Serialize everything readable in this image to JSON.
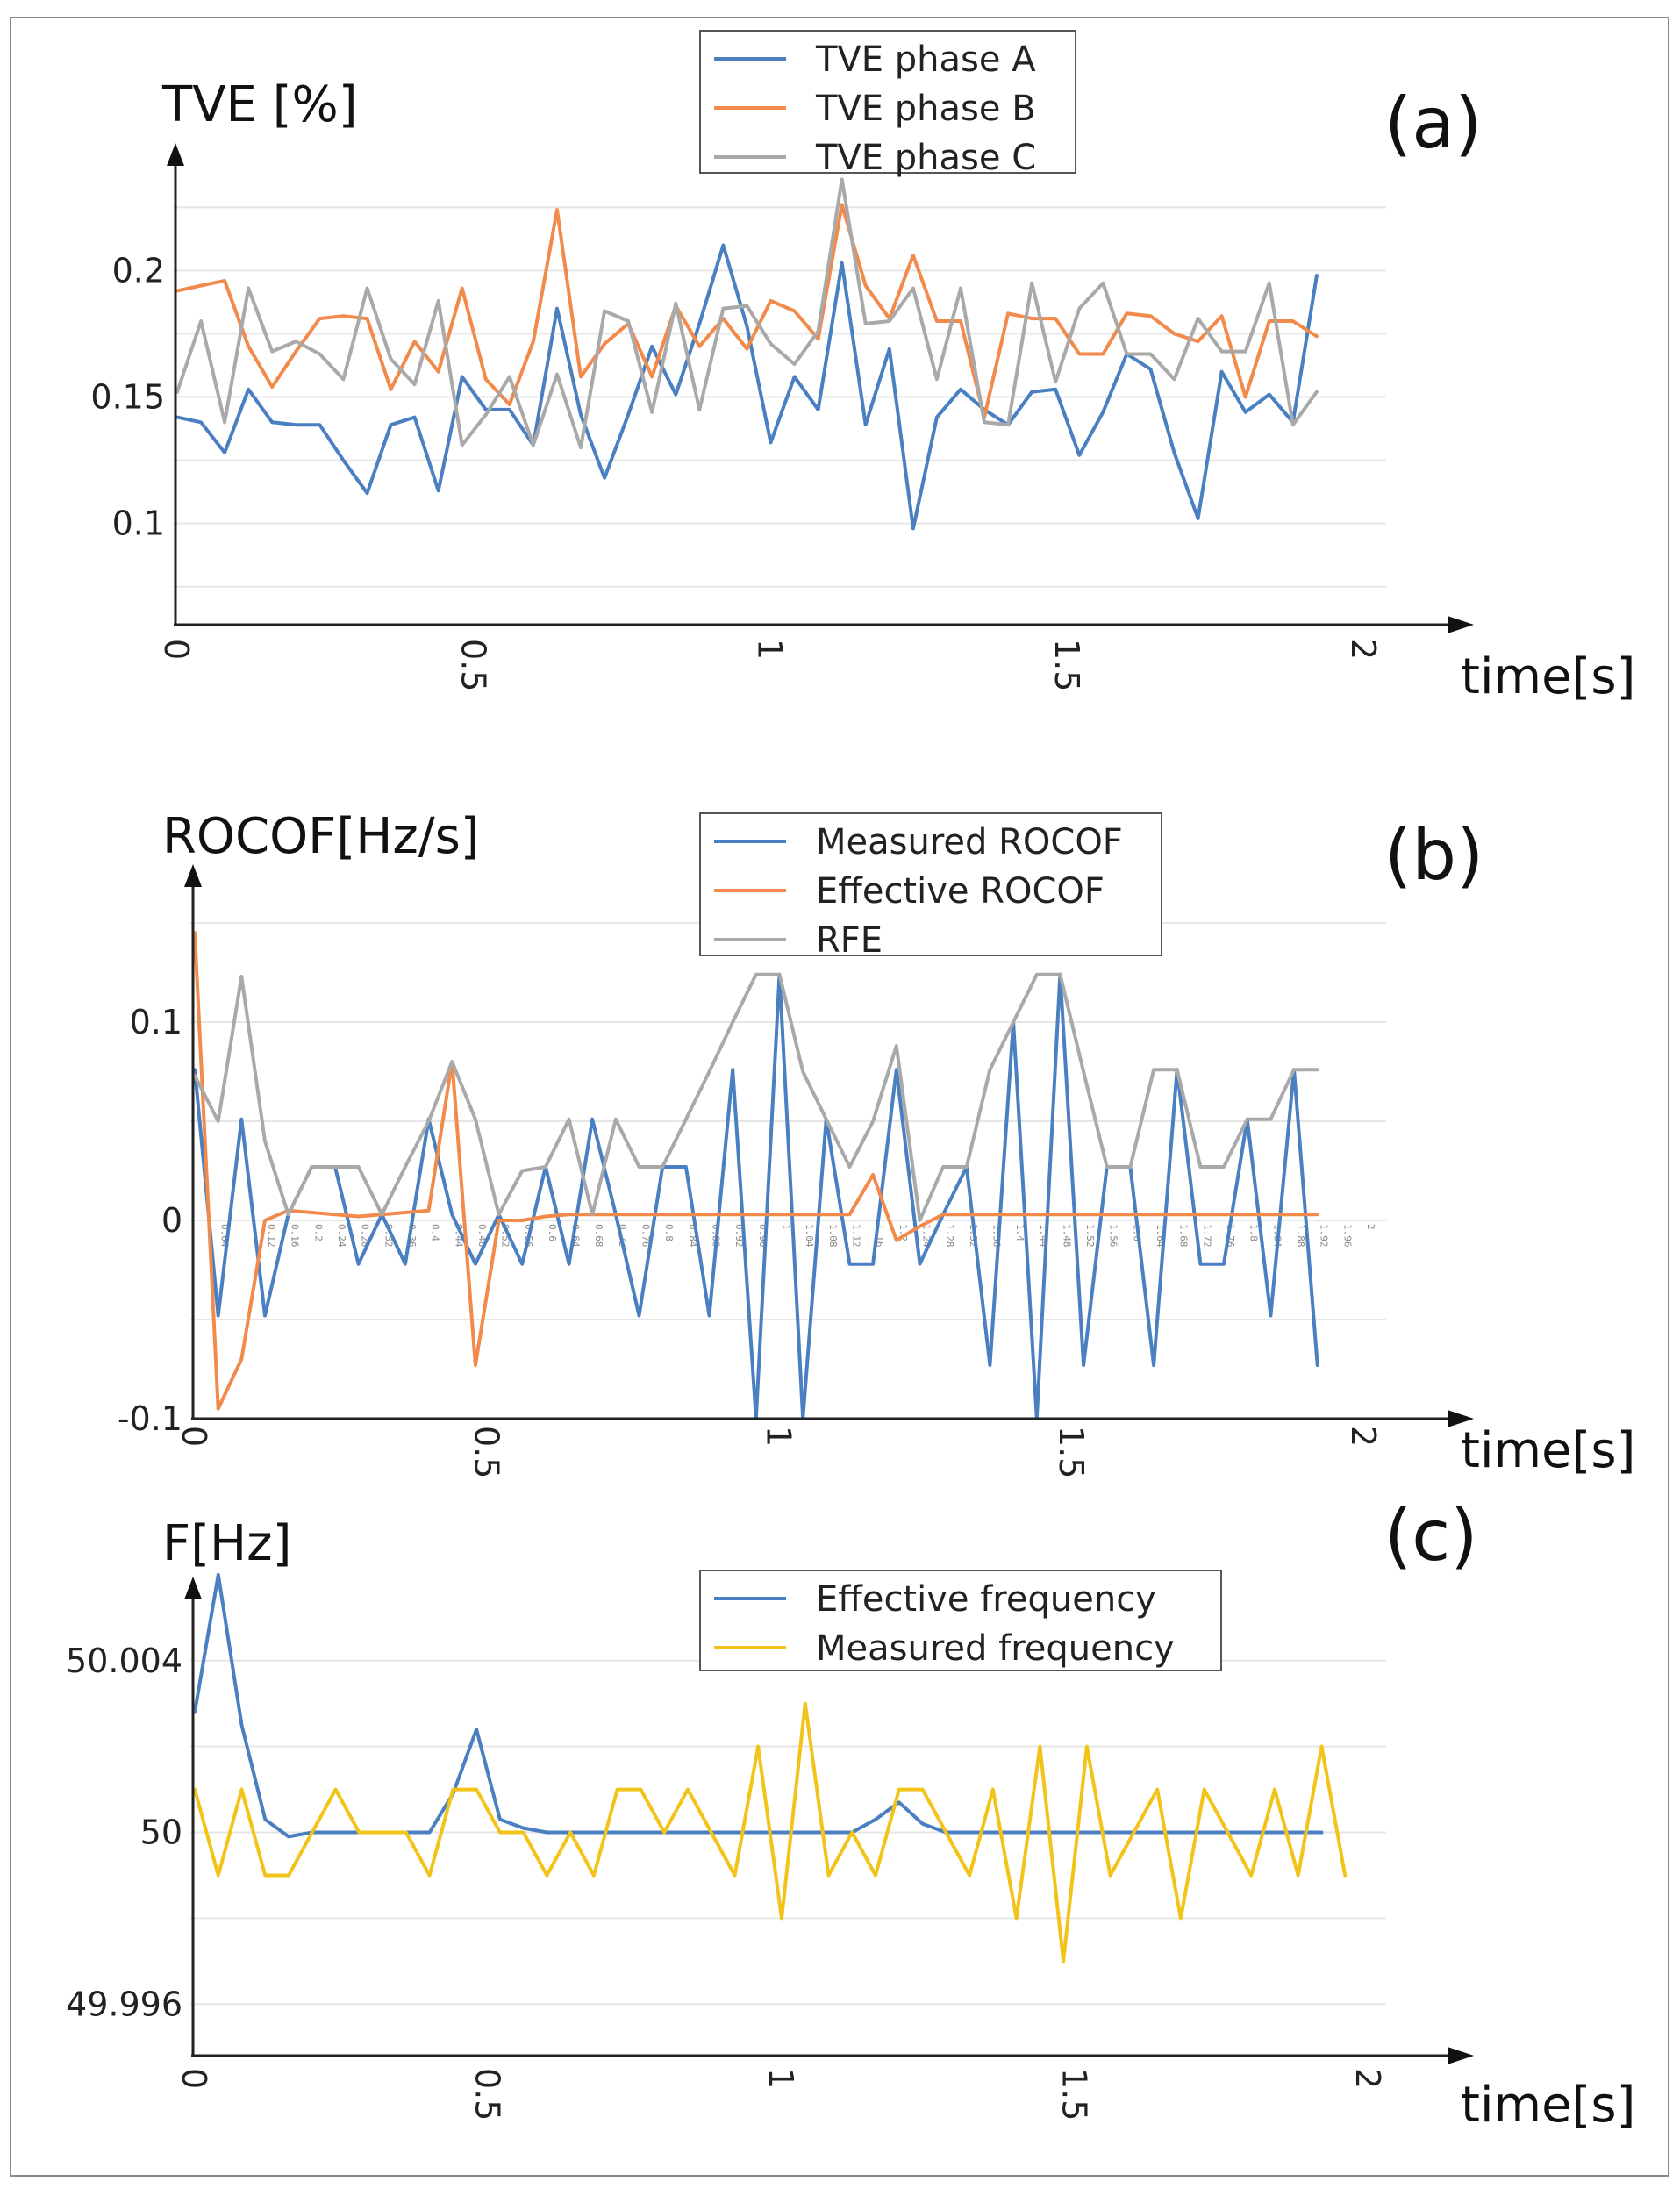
{
  "chart_data": [
    {
      "id": "a",
      "type": "line",
      "panel_label": "(a)",
      "ylabel": "TVE [%]",
      "xlabel": "time[s]",
      "xlim": [
        0,
        2
      ],
      "ylim": [
        0.06,
        0.24
      ],
      "xticks": [
        "0",
        "0.5",
        "1",
        "1.5",
        "2"
      ],
      "yticks": [
        "0.1",
        "0.15",
        "0.2"
      ],
      "legend_position": "top-center",
      "series": [
        {
          "name": "TVE phase A",
          "color": "#4a7fc1",
          "x_step": 0.04,
          "values": [
            0.142,
            0.14,
            0.128,
            0.153,
            0.14,
            0.139,
            0.139,
            0.125,
            0.112,
            0.139,
            0.142,
            0.113,
            0.158,
            0.145,
            0.145,
            0.131,
            0.185,
            0.143,
            0.118,
            0.143,
            0.17,
            0.151,
            0.179,
            0.21,
            0.178,
            0.132,
            0.158,
            0.145,
            0.203,
            0.139,
            0.169,
            0.098,
            0.142,
            0.153,
            0.145,
            0.139,
            0.152,
            0.153,
            0.127,
            0.144,
            0.167,
            0.161,
            0.128,
            0.102,
            0.16,
            0.144,
            0.151,
            0.14,
            0.198
          ]
        },
        {
          "name": "TVE phase B",
          "color": "#f28a4b",
          "x_step": 0.04,
          "values": [
            0.192,
            0.194,
            0.196,
            0.17,
            0.154,
            0.168,
            0.181,
            0.182,
            0.181,
            0.153,
            0.172,
            0.16,
            0.193,
            0.157,
            0.147,
            0.172,
            0.224,
            0.158,
            0.171,
            0.179,
            0.158,
            0.186,
            0.17,
            0.181,
            0.169,
            0.188,
            0.184,
            0.173,
            0.226,
            0.194,
            0.181,
            0.206,
            0.18,
            0.18,
            0.142,
            0.183,
            0.181,
            0.181,
            0.167,
            0.167,
            0.183,
            0.182,
            0.175,
            0.172,
            0.182,
            0.15,
            0.18,
            0.18,
            0.174
          ]
        },
        {
          "name": "TVE phase C",
          "color": "#a9a9a9",
          "x_step": 0.04,
          "values": [
            0.152,
            0.18,
            0.14,
            0.193,
            0.168,
            0.172,
            0.167,
            0.157,
            0.193,
            0.165,
            0.155,
            0.188,
            0.131,
            0.143,
            0.158,
            0.131,
            0.159,
            0.13,
            0.184,
            0.18,
            0.144,
            0.187,
            0.145,
            0.185,
            0.186,
            0.171,
            0.163,
            0.176,
            0.236,
            0.179,
            0.18,
            0.193,
            0.157,
            0.193,
            0.14,
            0.139,
            0.195,
            0.156,
            0.185,
            0.195,
            0.167,
            0.167,
            0.157,
            0.181,
            0.168,
            0.168,
            0.195,
            0.139,
            0.152
          ]
        }
      ]
    },
    {
      "id": "b",
      "type": "line",
      "panel_label": "(b)",
      "ylabel": "ROCOF[Hz/s]",
      "xlabel": "time[s]",
      "xlim": [
        0,
        2
      ],
      "ylim": [
        -0.1,
        0.15
      ],
      "xticks": [
        "0",
        "0.5",
        "1",
        "1.5",
        "2"
      ],
      "yticks": [
        "-0.1",
        "0",
        "0.1"
      ],
      "minor_x_labels": [
        "0.04",
        "0.12",
        "0.16",
        "0.2",
        "0.24",
        "0.28",
        "0.32",
        "0.36",
        "0.4",
        "0.44",
        "0.48",
        "0.52",
        "0.56",
        "0.6",
        "0.64",
        "0.68",
        "0.72",
        "0.76",
        "0.8",
        "0.84",
        "0.88",
        "0.92",
        "0.96",
        "1",
        "1.04",
        "1.08",
        "1.12",
        "1.16",
        "1.2",
        "1.24",
        "1.28",
        "1.32",
        "1.36",
        "1.4",
        "1.44",
        "1.48",
        "1.52",
        "1.56",
        "1.6",
        "1.64",
        "1.68",
        "1.72",
        "1.76",
        "1.8",
        "1.84",
        "1.88",
        "1.92",
        "1.96",
        "2"
      ],
      "legend_position": "top-center",
      "series": [
        {
          "name": "Measured ROCOF",
          "color": "#4a7fc1",
          "x_step": 0.04,
          "values": [
            0.076,
            -0.048,
            0.051,
            -0.048,
            0.003,
            0.027,
            0.027,
            -0.022,
            0.003,
            -0.022,
            0.051,
            0.003,
            -0.022,
            0.003,
            -0.022,
            0.027,
            -0.022,
            0.051,
            0.003,
            -0.048,
            0.027,
            0.027,
            -0.048,
            0.076,
            -0.1,
            0.124,
            -0.1,
            0.051,
            -0.022,
            -0.022,
            0.076,
            -0.022,
            0.003,
            0.027,
            -0.073,
            0.1,
            -0.1,
            0.124,
            -0.073,
            0.027,
            0.027,
            -0.073,
            0.076,
            -0.022,
            -0.022,
            0.051,
            -0.048,
            0.076,
            -0.073
          ]
        },
        {
          "name": "Effective ROCOF",
          "color": "#f28a4b",
          "x_step": 0.04,
          "values": [
            0.145,
            -0.095,
            -0.07,
            0.0,
            0.005,
            0.004,
            0.003,
            0.002,
            0.003,
            0.004,
            0.005,
            0.08,
            -0.073,
            0.0,
            0.0,
            0.002,
            0.003,
            0.003,
            0.003,
            0.003,
            0.003,
            0.003,
            0.003,
            0.003,
            0.003,
            0.003,
            0.003,
            0.003,
            0.003,
            0.023,
            -0.01,
            -0.003,
            0.003,
            0.003,
            0.003,
            0.003,
            0.003,
            0.003,
            0.003,
            0.003,
            0.003,
            0.003,
            0.003,
            0.003,
            0.003,
            0.003,
            0.003,
            0.003,
            0.003
          ]
        },
        {
          "name": "RFE",
          "color": "#a9a9a9",
          "x_step": 0.04,
          "values": [
            0.073,
            0.05,
            0.123,
            0.04,
            0.003,
            0.027,
            0.027,
            0.027,
            0.003,
            0.027,
            0.05,
            0.08,
            0.051,
            0.003,
            0.025,
            0.027,
            0.051,
            0.003,
            0.051,
            0.027,
            0.027,
            0.051,
            0.075,
            0.1,
            0.124,
            0.124,
            0.075,
            0.051,
            0.027,
            0.05,
            0.088,
            0.0,
            0.027,
            0.027,
            0.076,
            0.1,
            0.124,
            0.124,
            0.075,
            0.027,
            0.027,
            0.076,
            0.076,
            0.027,
            0.027,
            0.051,
            0.051,
            0.076,
            0.076
          ]
        }
      ]
    },
    {
      "id": "c",
      "type": "line",
      "panel_label": "(c)",
      "ylabel": "F[Hz]",
      "xlabel": "time[s]",
      "xlim": [
        0,
        2
      ],
      "ylim": [
        49.9948,
        50.0061
      ],
      "xticks": [
        "0",
        "0.5",
        "1",
        "1.5",
        "2"
      ],
      "yticks": [
        "49.996",
        "50",
        "50.004"
      ],
      "legend_position": "top-center",
      "series": [
        {
          "name": "Effective frequency",
          "color": "#4a7fc1",
          "x_step": 0.04,
          "values": [
            50.0028,
            50.006,
            50.0025,
            50.0003,
            49.9999,
            50.0,
            50.0,
            50.0,
            50.0,
            50.0,
            50.0,
            50.0009,
            50.0024,
            50.0003,
            50.0001,
            50.0,
            50.0,
            50.0,
            50.0,
            50.0,
            50.0,
            50.0,
            50.0,
            50.0,
            50.0,
            50.0,
            50.0,
            50.0,
            50.0,
            50.0003,
            50.0007,
            50.0002,
            50.0,
            50.0,
            50.0,
            50.0,
            50.0,
            50.0,
            50.0,
            50.0,
            50.0,
            50.0,
            50.0,
            50.0,
            50.0,
            50.0,
            50.0,
            50.0,
            50.0
          ]
        },
        {
          "name": "Measured frequency",
          "color": "#f2c318",
          "x_step": 0.04,
          "values": [
            50.001,
            49.999,
            50.001,
            49.999,
            49.999,
            50.0,
            50.001,
            50.0,
            50.0,
            50.0,
            49.999,
            50.001,
            50.001,
            50.0,
            50.0,
            49.999,
            50.0,
            49.999,
            50.001,
            50.001,
            50.0,
            50.001,
            50.0,
            49.999,
            50.002,
            49.998,
            50.003,
            49.999,
            50.0,
            49.999,
            50.001,
            50.001,
            50.0,
            49.999,
            50.001,
            49.998,
            50.002,
            49.997,
            50.002,
            49.999,
            50.0,
            50.001,
            49.998,
            50.001,
            50.0,
            49.999,
            50.001,
            49.999,
            50.002,
            49.999
          ]
        }
      ]
    }
  ]
}
